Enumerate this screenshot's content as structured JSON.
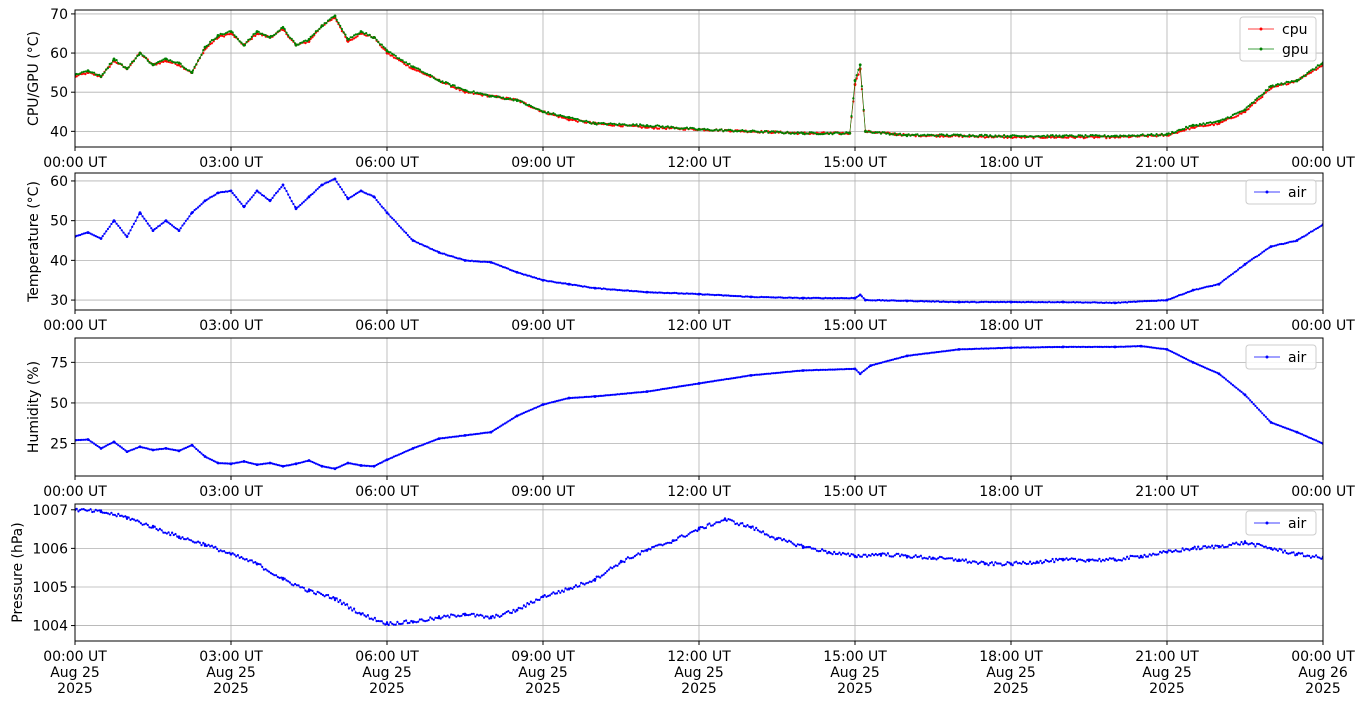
{
  "figure": {
    "x_tick_labels": [
      "00:00 UT",
      "03:00 UT",
      "06:00 UT",
      "09:00 UT",
      "12:00 UT",
      "15:00 UT",
      "18:00 UT",
      "21:00 UT",
      "00:00 UT"
    ],
    "bottom_tick_lines": [
      [
        "00:00 UT",
        "Aug 25",
        "2025"
      ],
      [
        "03:00 UT",
        "Aug 25",
        "2025"
      ],
      [
        "06:00 UT",
        "Aug 25",
        "2025"
      ],
      [
        "09:00 UT",
        "Aug 25",
        "2025"
      ],
      [
        "12:00 UT",
        "Aug 25",
        "2025"
      ],
      [
        "15:00 UT",
        "Aug 25",
        "2025"
      ],
      [
        "18:00 UT",
        "Aug 25",
        "2025"
      ],
      [
        "21:00 UT",
        "Aug 25",
        "2025"
      ],
      [
        "00:00 UT",
        "Aug 26",
        "2025"
      ]
    ]
  },
  "chart_data": [
    {
      "type": "line",
      "ylabel": "CPU/GPU (°C)",
      "xlim_hours": [
        0,
        24
      ],
      "ylim": [
        36,
        71
      ],
      "yticks": [
        40,
        50,
        60,
        70
      ],
      "grid": true,
      "legend": "top-right",
      "series": [
        {
          "name": "cpu",
          "color": "#ff0000",
          "x_hours": [
            0,
            0.25,
            0.5,
            0.75,
            1,
            1.25,
            1.5,
            1.75,
            2,
            2.25,
            2.5,
            2.75,
            3,
            3.25,
            3.5,
            3.75,
            4,
            4.25,
            4.5,
            4.75,
            5,
            5.25,
            5.5,
            5.75,
            6,
            6.5,
            7,
            7.5,
            8,
            8.5,
            9,
            9.5,
            10,
            11,
            12,
            13,
            14,
            14.9,
            15,
            15.1,
            15.2,
            16,
            17,
            18,
            19,
            20,
            21,
            21.5,
            22,
            22.5,
            23,
            23.5,
            24
          ],
          "values": [
            54,
            55,
            54,
            58,
            56,
            60,
            57,
            58,
            57,
            55,
            61,
            64,
            65,
            62,
            65,
            64,
            66,
            62,
            63,
            67,
            69,
            63,
            65,
            64,
            60,
            56,
            53,
            50,
            49,
            48,
            45,
            43,
            42,
            41,
            40.5,
            40,
            39.5,
            39.5,
            52,
            56,
            40,
            39,
            38.8,
            38.5,
            38.5,
            38.5,
            39,
            41,
            42,
            45,
            51,
            53,
            57
          ]
        },
        {
          "name": "gpu",
          "color": "#008000",
          "x_hours": [
            0,
            0.25,
            0.5,
            0.75,
            1,
            1.25,
            1.5,
            1.75,
            2,
            2.25,
            2.5,
            2.75,
            3,
            3.25,
            3.5,
            3.75,
            4,
            4.25,
            4.5,
            4.75,
            5,
            5.25,
            5.5,
            5.75,
            6,
            6.5,
            7,
            7.5,
            8,
            8.5,
            9,
            9.5,
            10,
            11,
            12,
            13,
            14,
            14.9,
            15,
            15.1,
            15.2,
            16,
            17,
            18,
            19,
            20,
            21,
            21.5,
            22,
            22.5,
            23,
            23.5,
            24
          ],
          "values": [
            54.5,
            55.5,
            54,
            58.5,
            56,
            60,
            57,
            58.5,
            57.5,
            55,
            61.5,
            64.5,
            65.5,
            62,
            65.5,
            64,
            66.5,
            62,
            63.5,
            67,
            69.5,
            63.5,
            65.5,
            64,
            60.5,
            56.5,
            53,
            50.5,
            49,
            48,
            45,
            43.5,
            42,
            41.5,
            40.5,
            40,
            39.5,
            39.5,
            53,
            57,
            40,
            39,
            39,
            38.8,
            38.8,
            38.8,
            39.2,
            41.5,
            42.5,
            45.5,
            51.5,
            53,
            57.5
          ]
        }
      ]
    },
    {
      "type": "line",
      "ylabel": "Temperature (°C)",
      "xlim_hours": [
        0,
        24
      ],
      "ylim": [
        27.5,
        62
      ],
      "yticks": [
        30,
        40,
        50,
        60
      ],
      "grid": true,
      "legend": "top-right",
      "series": [
        {
          "name": "air",
          "color": "#0000ff",
          "x_hours": [
            0,
            0.25,
            0.5,
            0.75,
            1,
            1.25,
            1.5,
            1.75,
            2,
            2.25,
            2.5,
            2.75,
            3,
            3.25,
            3.5,
            3.75,
            4,
            4.25,
            4.5,
            4.75,
            5,
            5.25,
            5.5,
            5.75,
            6,
            6.5,
            7,
            7.5,
            8,
            8.5,
            9,
            9.5,
            10,
            11,
            12,
            13,
            14,
            15,
            15.1,
            15.2,
            16,
            17,
            18,
            19,
            20,
            21,
            21.5,
            22,
            22.5,
            23,
            23.5,
            24
          ],
          "values": [
            46,
            47,
            45.5,
            50,
            46,
            52,
            47.5,
            50,
            47.5,
            52,
            55,
            57,
            57.5,
            53.5,
            57.5,
            55,
            59,
            53,
            56,
            59,
            60.5,
            55.5,
            57.5,
            56,
            52,
            45,
            42,
            40,
            39.5,
            37,
            35,
            34,
            33,
            32,
            31.5,
            30.8,
            30.5,
            30.5,
            31.3,
            30,
            29.8,
            29.5,
            29.5,
            29.5,
            29.3,
            30,
            32.5,
            34,
            39,
            43.5,
            45,
            49
          ]
        }
      ]
    },
    {
      "type": "line",
      "ylabel": "Humidity (%)",
      "xlim_hours": [
        0,
        24
      ],
      "ylim": [
        5,
        90
      ],
      "yticks": [
        25,
        50,
        75
      ],
      "grid": true,
      "legend": "top-right",
      "series": [
        {
          "name": "air",
          "color": "#0000ff",
          "x_hours": [
            0,
            0.25,
            0.5,
            0.75,
            1,
            1.25,
            1.5,
            1.75,
            2,
            2.25,
            2.5,
            2.75,
            3,
            3.25,
            3.5,
            3.75,
            4,
            4.25,
            4.5,
            4.75,
            5,
            5.25,
            5.5,
            5.75,
            6,
            6.5,
            7,
            7.5,
            8,
            8.5,
            9,
            9.5,
            10,
            11,
            12,
            13,
            14,
            15,
            15.1,
            15.3,
            16,
            17,
            18,
            19,
            20,
            20.5,
            21,
            21.5,
            22,
            22.5,
            23,
            23.5,
            24
          ],
          "values": [
            27,
            27.5,
            22,
            26,
            20,
            23,
            21,
            22,
            20.5,
            24,
            17,
            13,
            12.5,
            14,
            12,
            13,
            11,
            12.5,
            14.5,
            11,
            9.5,
            13,
            11.5,
            11,
            15,
            22,
            28,
            30,
            32,
            42,
            49,
            53,
            54,
            57,
            62,
            67,
            70,
            71,
            68,
            73,
            79,
            83,
            84,
            84.5,
            84.5,
            85,
            83,
            75,
            68,
            55,
            38,
            32,
            25
          ]
        }
      ]
    },
    {
      "type": "scatter",
      "ylabel": "Pressure (hPa)",
      "xlim_hours": [
        0,
        24
      ],
      "ylim": [
        1003.6,
        1007.15
      ],
      "yticks": [
        1004,
        1005,
        1006,
        1007
      ],
      "grid": true,
      "legend": "top-right",
      "series": [
        {
          "name": "air",
          "color": "#0000ff",
          "x_hours": [
            0,
            0.5,
            1,
            1.5,
            2,
            2.5,
            3,
            3.5,
            4,
            4.5,
            5,
            5.5,
            6,
            6.5,
            7,
            7.5,
            8,
            8.5,
            9,
            9.5,
            10,
            10.5,
            11,
            11.5,
            12,
            12.5,
            13,
            13.5,
            14,
            14.5,
            15,
            15.5,
            16,
            16.5,
            17,
            17.5,
            18,
            18.5,
            19,
            19.5,
            20,
            20.5,
            21,
            21.5,
            22,
            22.5,
            23,
            23.5,
            24
          ],
          "values": [
            1007.0,
            1006.95,
            1006.8,
            1006.55,
            1006.3,
            1006.1,
            1005.85,
            1005.6,
            1005.2,
            1004.9,
            1004.7,
            1004.3,
            1004.05,
            1004.1,
            1004.2,
            1004.3,
            1004.2,
            1004.4,
            1004.75,
            1004.95,
            1005.2,
            1005.65,
            1005.95,
            1006.2,
            1006.5,
            1006.75,
            1006.55,
            1006.25,
            1006.05,
            1005.9,
            1005.8,
            1005.85,
            1005.8,
            1005.75,
            1005.7,
            1005.6,
            1005.6,
            1005.65,
            1005.7,
            1005.7,
            1005.7,
            1005.8,
            1005.9,
            1006.0,
            1006.05,
            1006.15,
            1006.0,
            1005.85,
            1005.75
          ]
        }
      ]
    }
  ]
}
